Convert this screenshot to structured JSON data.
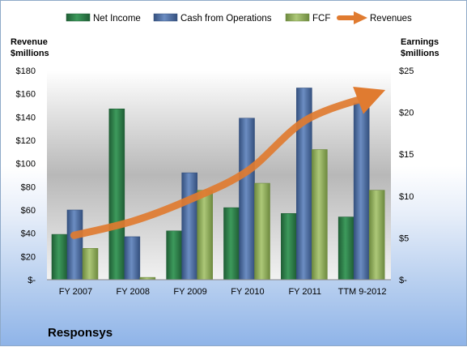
{
  "company": "Responsys",
  "colors": {
    "net_income": "#2e7d4a",
    "cash_from_operations": "#4d6fa6",
    "fcf": "#8fae5a",
    "revenues": "#e07b30"
  },
  "chart_data": {
    "type": "bar",
    "categories": [
      "FY 2007",
      "FY 2008",
      "FY 2009",
      "FY 2010",
      "FY 2011",
      "TTM 9-2012"
    ],
    "legend_position": "top",
    "grid": false,
    "left_axis": {
      "title_line1": "Revenue",
      "title_line2": "$millions",
      "range": [
        0,
        180
      ],
      "ticks": [
        "$-",
        "$20",
        "$40",
        "$60",
        "$80",
        "$100",
        "$120",
        "$140",
        "$160",
        "$180"
      ]
    },
    "right_axis": {
      "title_line1": "Earnings",
      "title_line2": "$millions",
      "range": [
        0,
        25
      ],
      "ticks": [
        "$-",
        "$5",
        "$10",
        "$15",
        "$20",
        "$25"
      ]
    },
    "series": [
      {
        "name": "Net Income",
        "type": "bar",
        "axis": "left",
        "values": [
          39,
          147,
          42,
          62,
          57,
          54
        ]
      },
      {
        "name": "Cash from Operations",
        "type": "bar",
        "axis": "left",
        "values": [
          60,
          37,
          92,
          139,
          165,
          152
        ]
      },
      {
        "name": "FCF",
        "type": "bar",
        "axis": "left",
        "values": [
          27,
          2,
          77,
          83,
          112,
          77
        ]
      },
      {
        "name": "Revenues",
        "type": "line",
        "axis": "right",
        "values": [
          5.3,
          7.0,
          9.6,
          13.0,
          19.0,
          21.8
        ]
      }
    ]
  }
}
